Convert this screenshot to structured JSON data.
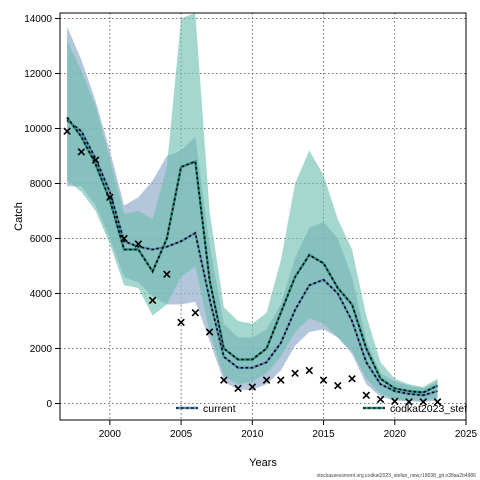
{
  "chart_data": {
    "type": "line",
    "title": "",
    "xlabel": "Years",
    "ylabel": "Catch",
    "xlim": [
      1996.5,
      2025
    ],
    "ylim": [
      -600,
      14200
    ],
    "xticks": [
      2000,
      2005,
      2010,
      2015,
      2020,
      2025
    ],
    "yticks": [
      0,
      2000,
      4000,
      6000,
      8000,
      10000,
      12000,
      14000
    ],
    "grid": true,
    "legend_position": "bottom",
    "x": [
      1997,
      1998,
      1999,
      2000,
      2001,
      2002,
      2003,
      2004,
      2005,
      2006,
      2007,
      2008,
      2009,
      2010,
      2011,
      2012,
      2013,
      2014,
      2015,
      2016,
      2017,
      2018,
      2019,
      2020,
      2021,
      2022,
      2023
    ],
    "series": [
      {
        "name": "current",
        "color": "#5b8db8",
        "band_color": "#9ab3cf",
        "median": [
          10300,
          9900,
          8900,
          7700,
          5900,
          5700,
          5600,
          5700,
          5900,
          6200,
          3800,
          1700,
          1300,
          1300,
          1500,
          2200,
          3400,
          4300,
          4500,
          4000,
          3000,
          1500,
          700,
          450,
          350,
          300,
          450
        ],
        "lower": [
          7900,
          7900,
          7200,
          6000,
          4600,
          4400,
          3900,
          3600,
          3600,
          3700,
          2300,
          800,
          500,
          500,
          700,
          1200,
          2100,
          2600,
          2700,
          2400,
          1800,
          700,
          250,
          100,
          80,
          60,
          100
        ],
        "upper": [
          13700,
          12500,
          11000,
          9200,
          7200,
          7500,
          8100,
          9000,
          9200,
          9700,
          5800,
          2900,
          2400,
          2400,
          2700,
          3600,
          5300,
          6400,
          6600,
          6000,
          4600,
          2300,
          1100,
          800,
          650,
          550,
          800
        ]
      },
      {
        "name": "codkat2023_stef",
        "color": "#2c8c7c",
        "band_color": "#6cbfae",
        "median": [
          10400,
          9700,
          8700,
          7400,
          5600,
          5600,
          4800,
          6000,
          8600,
          8800,
          4500,
          2000,
          1600,
          1600,
          2000,
          3300,
          4600,
          5400,
          5100,
          4200,
          3600,
          2000,
          900,
          550,
          450,
          400,
          650
        ],
        "lower": [
          8100,
          7700,
          7000,
          5800,
          4300,
          4200,
          3200,
          3600,
          4600,
          5000,
          2600,
          1000,
          700,
          800,
          1100,
          1700,
          2600,
          3100,
          2900,
          2400,
          1900,
          900,
          350,
          150,
          100,
          100,
          200
        ],
        "upper": [
          13200,
          12100,
          10800,
          8900,
          6900,
          7000,
          6700,
          8600,
          14000,
          14200,
          7000,
          3500,
          3000,
          2900,
          3300,
          5200,
          8000,
          9200,
          8300,
          6700,
          5600,
          3200,
          1500,
          900,
          700,
          600,
          900
        ]
      }
    ],
    "observed": {
      "marker": "x",
      "x": [
        1997,
        1998,
        1999,
        2000,
        2001,
        2002,
        2003,
        2004,
        2005,
        2006,
        2007,
        2008,
        2009,
        2010,
        2011,
        2012,
        2013,
        2014,
        2015,
        2016,
        2017,
        2018,
        2019,
        2020,
        2021,
        2022,
        2023
      ],
      "y": [
        9900,
        9150,
        8850,
        7500,
        6000,
        5800,
        3750,
        4700,
        2950,
        3300,
        2600,
        850,
        550,
        600,
        850,
        850,
        1100,
        1200,
        850,
        650,
        900,
        300,
        150,
        80,
        60,
        60,
        60
      ]
    }
  },
  "footer": "stockassessment.org,codkat2023_stefan_new,r18038_git e38aa2b4986"
}
